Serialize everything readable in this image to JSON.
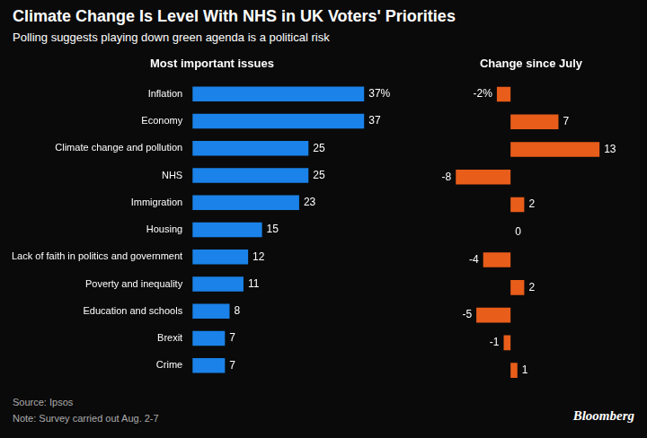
{
  "title": "Climate Change Is Level With NHS in UK Voters' Priorities",
  "subtitle": "Polling suggests playing down green agenda is a political risk",
  "annotations": [
    "Source: Ipsos",
    "Note: Survey carried out Aug. 2-7",
    "Bloomberg"
  ],
  "chart_data": [
    {
      "type": "bar",
      "orientation": "horizontal",
      "title": "Most important issues",
      "categories": [
        "Inflation",
        "Economy",
        "Climate change and pollution",
        "NHS",
        "Immigration",
        "Housing",
        "Lack of faith in politics and government",
        "Poverty and inequality",
        "Education and schools",
        "Brexit",
        "Crime"
      ],
      "values": [
        37,
        37,
        25,
        25,
        23,
        15,
        12,
        11,
        8,
        7,
        7
      ],
      "value_labels": [
        "37%",
        "37",
        "25",
        "25",
        "23",
        "15",
        "12",
        "11",
        "8",
        "7",
        "7"
      ],
      "color": "#1a82e8",
      "xlim": [
        0,
        48
      ],
      "grid": false,
      "data_labels": true,
      "tick_labels": "y"
    },
    {
      "type": "bar",
      "orientation": "horizontal",
      "title": "Change since July",
      "categories": [
        "Inflation",
        "Economy",
        "Climate change and pollution",
        "NHS",
        "Immigration",
        "Housing",
        "Lack of faith in politics and government",
        "Poverty and inequality",
        "Education and schools",
        "Brexit",
        "Crime"
      ],
      "values": [
        -2,
        7,
        13,
        -8,
        2,
        0,
        -4,
        2,
        -5,
        -1,
        1
      ],
      "value_labels": [
        "-2%",
        "7",
        "13",
        "-8",
        "2",
        "0",
        "-4",
        "2",
        "-5",
        "-1",
        "1"
      ],
      "color": "#e85d1a",
      "xlim": [
        -10,
        16
      ],
      "grid": false,
      "data_labels": true,
      "tick_labels": false
    }
  ]
}
